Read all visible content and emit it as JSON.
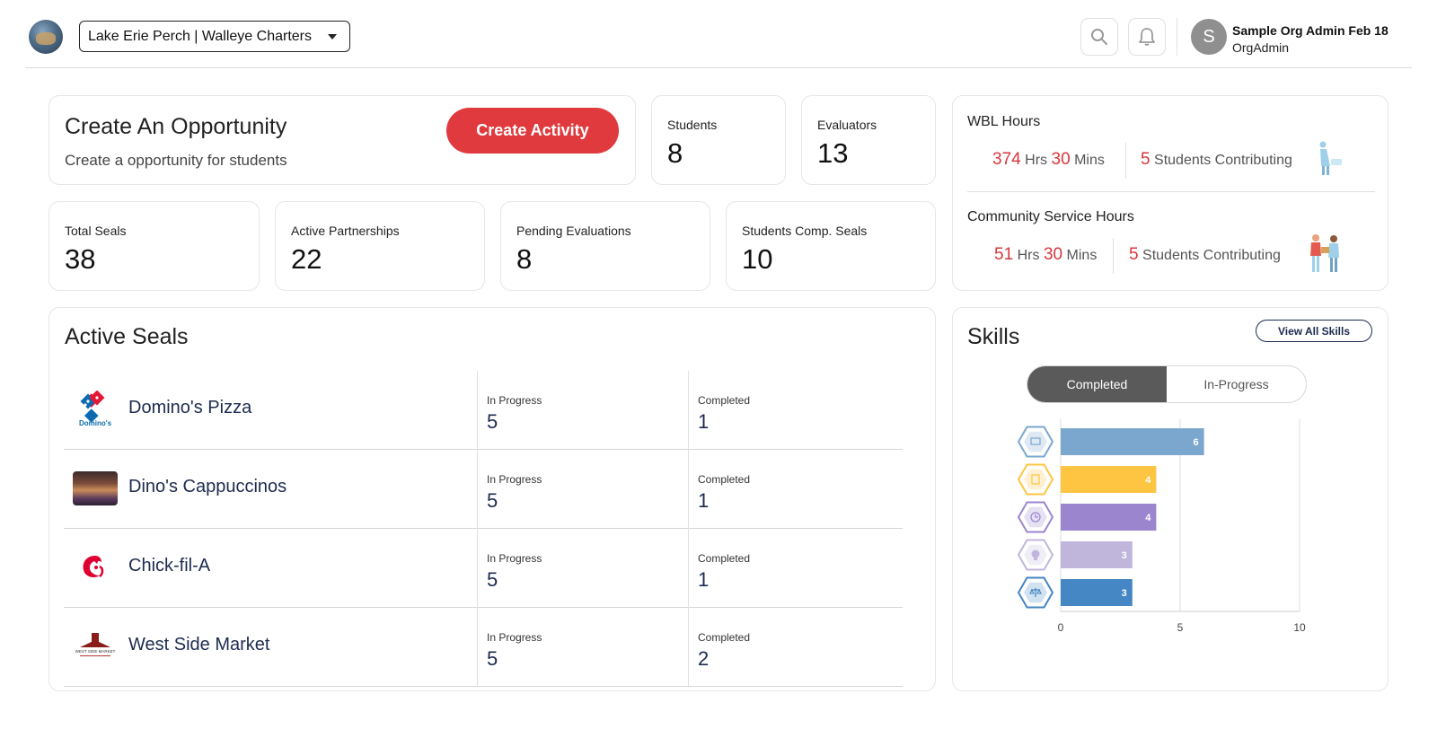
{
  "header": {
    "org_name": "Lake Erie Perch | Walleye Charters",
    "user_initial": "S",
    "user_name": "Sample Org Admin Feb 18",
    "user_role": "OrgAdmin"
  },
  "opportunity": {
    "title": "Create An Opportunity",
    "subtitle": "Create a opportunity for students",
    "button_label": "Create Activity"
  },
  "stats_top": [
    {
      "label": "Students",
      "value": "8"
    },
    {
      "label": "Evaluators",
      "value": "13"
    }
  ],
  "stats_bottom": [
    {
      "label": "Total Seals",
      "value": "38"
    },
    {
      "label": "Active Partnerships",
      "value": "22"
    },
    {
      "label": "Pending Evaluations",
      "value": "8"
    },
    {
      "label": "Students Comp. Seals",
      "value": "10"
    }
  ],
  "wbl_hours": {
    "title": "WBL Hours",
    "hrs": "374",
    "hrs_unit": "Hrs",
    "mins": "30",
    "mins_unit": "Mins",
    "students": "5",
    "students_label": "Students Contributing"
  },
  "community_hours": {
    "title": "Community Service Hours",
    "hrs": "51",
    "hrs_unit": "Hrs",
    "mins": "30",
    "mins_unit": "Mins",
    "students": "5",
    "students_label": "Students Contributing"
  },
  "active_seals": {
    "title": "Active Seals",
    "in_progress_label": "In Progress",
    "completed_label": "Completed",
    "rows": [
      {
        "name": "Domino's Pizza",
        "in_progress": "5",
        "completed": "1",
        "logo_text": "Domino's"
      },
      {
        "name": "Dino's Cappuccinos",
        "in_progress": "5",
        "completed": "1"
      },
      {
        "name": "Chick-fil-A",
        "in_progress": "5",
        "completed": "1"
      },
      {
        "name": "West Side Market",
        "in_progress": "5",
        "completed": "2",
        "logo_text": "WEST SIDE MARKET"
      }
    ]
  },
  "skills": {
    "title": "Skills",
    "view_all_label": "View All Skills",
    "tab_completed": "Completed",
    "tab_in_progress": "In-Progress",
    "active_tab": "Completed"
  },
  "chart_data": {
    "type": "bar",
    "orientation": "horizontal",
    "categories": [
      "",
      "",
      "",
      "",
      ""
    ],
    "category_icons": [
      "presentation-icon",
      "notepad-icon",
      "clock-icon",
      "lightbulb-icon",
      "scales-icon"
    ],
    "values": [
      6,
      4,
      4,
      3,
      3
    ],
    "colors": [
      "#7ba7cf",
      "#fdc542",
      "#9b85cf",
      "#c0b6dc",
      "#4586c5"
    ],
    "xlim": [
      0,
      10
    ],
    "xticks": [
      0,
      5,
      10
    ],
    "grid": true,
    "title": "",
    "xlabel": "",
    "ylabel": ""
  }
}
